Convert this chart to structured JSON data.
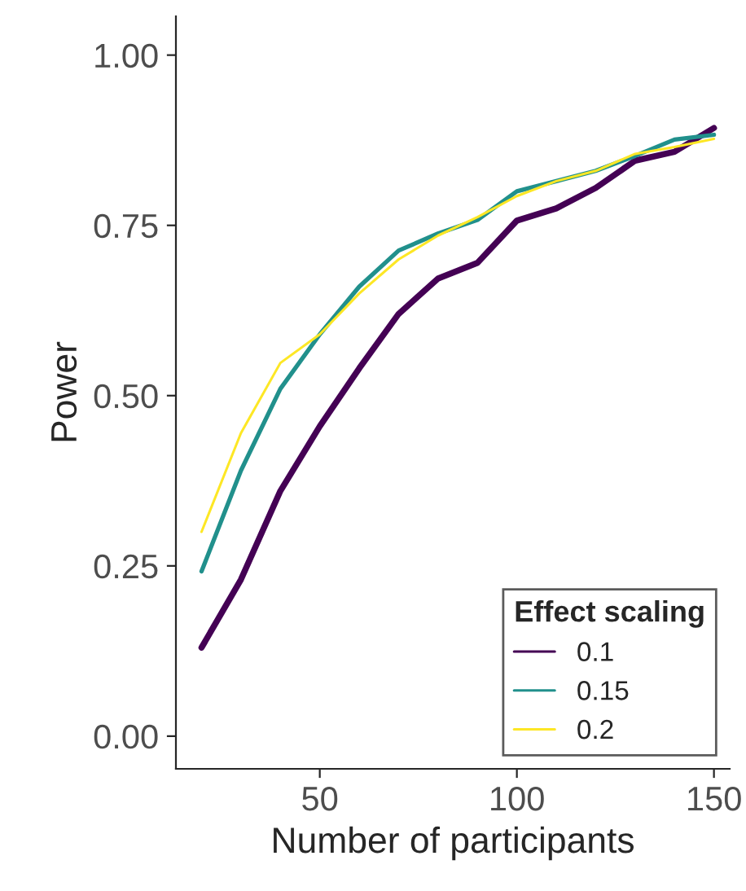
{
  "chart_data": {
    "type": "line",
    "xlabel": "Number of participants",
    "ylabel": "Power",
    "legend_title": "Effect scaling",
    "legend": "bottom right",
    "grid": false,
    "xlim": [
      13.5,
      154
    ],
    "ylim": [
      -0.048,
      1.057
    ],
    "xticks": [
      50,
      100,
      150
    ],
    "yticks": [
      {
        "value": 0,
        "label": "0.00"
      },
      {
        "value": 0.25,
        "label": "0.25"
      },
      {
        "value": 0.5,
        "label": "0.50"
      },
      {
        "value": 0.75,
        "label": "0.75"
      },
      {
        "value": 1,
        "label": "1.00"
      }
    ],
    "x": [
      20,
      30,
      40,
      50,
      60,
      70,
      80,
      90,
      100,
      110,
      120,
      130,
      140,
      150
    ],
    "series": [
      {
        "name": "0.1",
        "color": "#440154",
        "values": [
          0.13,
          0.23,
          0.36,
          0.455,
          0.54,
          0.62,
          0.672,
          0.695,
          0.757,
          0.775,
          0.805,
          0.845,
          0.858,
          0.893
        ]
      },
      {
        "name": "0.15",
        "color": "#21908c",
        "values": [
          0.242,
          0.39,
          0.51,
          0.59,
          0.66,
          0.713,
          0.738,
          0.758,
          0.8,
          0.815,
          0.83,
          0.852,
          0.876,
          0.883
        ]
      },
      {
        "name": "0.2",
        "color": "#fde725",
        "values": [
          0.3,
          0.445,
          0.548,
          0.59,
          0.65,
          0.7,
          0.735,
          0.762,
          0.793,
          0.815,
          0.83,
          0.855,
          0.865,
          0.877
        ]
      }
    ]
  }
}
